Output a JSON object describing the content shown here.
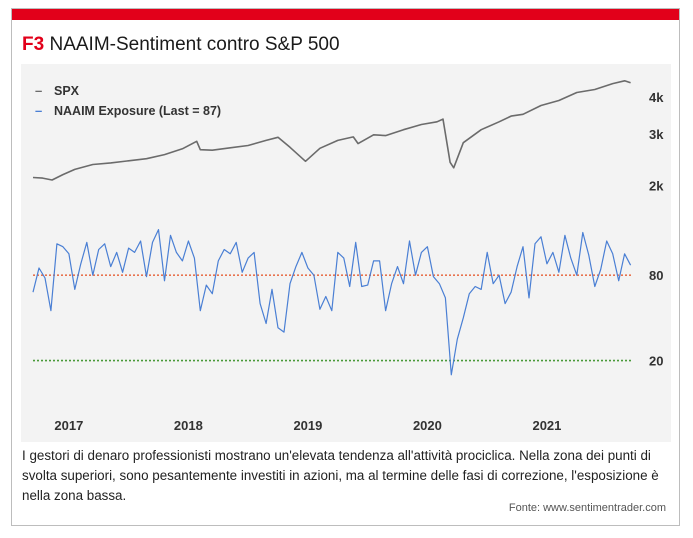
{
  "header": {
    "tag": "F3",
    "title": "NAAIM-Sentiment contro S&P 500"
  },
  "caption": "I gestori di denaro professionisti mostrano un'elevata tendenza all'attività prociclica. Nella zona dei punti di svolta superiori, sono pesantemente investiti in azioni, ma al termine delle fasi di correzione, l'esposizione è nella zona bassa.",
  "source": "Fonte: www.sentimentrader.com",
  "colors": {
    "accent": "#e2001a",
    "spx": "#6b6b6b",
    "naaim": "#4a7fd4",
    "ref_high": "#e8734f",
    "ref_low": "#4a9a3a",
    "plot_bg": "#f3f3f3"
  },
  "chart_data": {
    "type": "line",
    "legend": {
      "position": "top-left",
      "entries": [
        {
          "marker": "–",
          "label": "SPX"
        },
        {
          "marker": "–",
          "label": "NAAIM Exposure (Last = 87)"
        }
      ]
    },
    "x_ticks": [
      "2017",
      "2018",
      "2019",
      "2020",
      "2021"
    ],
    "x_range": [
      2016.7,
      2021.72
    ],
    "spx_axis": {
      "scale": "log",
      "ticks": [
        {
          "value": 4000,
          "label": "4k"
        },
        {
          "value": 3000,
          "label": "3k"
        },
        {
          "value": 2000,
          "label": "2k"
        }
      ],
      "range": [
        1800,
        4800
      ]
    },
    "naaim_axis": {
      "ticks": [
        {
          "value": 80,
          "label": "80"
        },
        {
          "value": 20,
          "label": "20"
        }
      ],
      "range": [
        0,
        130
      ]
    },
    "reference_lines": [
      {
        "value": 80,
        "style": "dotted"
      },
      {
        "value": 20,
        "style": "dotted"
      }
    ],
    "series": [
      {
        "name": "SPX",
        "x": [
          2016.7,
          2016.78,
          2016.86,
          2016.95,
          2017.05,
          2017.2,
          2017.35,
          2017.5,
          2017.65,
          2017.8,
          2017.95,
          2018.07,
          2018.1,
          2018.2,
          2018.35,
          2018.5,
          2018.65,
          2018.75,
          2018.85,
          2018.98,
          2019.1,
          2019.25,
          2019.38,
          2019.42,
          2019.55,
          2019.65,
          2019.8,
          2019.95,
          2020.08,
          2020.13,
          2020.19,
          2020.22,
          2020.3,
          2020.45,
          2020.6,
          2020.7,
          2020.8,
          2020.95,
          2021.1,
          2021.25,
          2021.4,
          2021.55,
          2021.65,
          2021.7
        ],
        "values": [
          2130,
          2120,
          2090,
          2180,
          2270,
          2360,
          2390,
          2430,
          2470,
          2550,
          2670,
          2830,
          2650,
          2640,
          2690,
          2740,
          2850,
          2920,
          2700,
          2420,
          2680,
          2850,
          2930,
          2780,
          2980,
          2960,
          3100,
          3230,
          3300,
          3370,
          2400,
          2300,
          2800,
          3100,
          3300,
          3450,
          3500,
          3750,
          3900,
          4150,
          4250,
          4450,
          4550,
          4480
        ]
      },
      {
        "name": "NAAIM Exposure (Last = 87)",
        "x": [
          2016.7,
          2016.75,
          2016.8,
          2016.85,
          2016.9,
          2016.95,
          2017.0,
          2017.05,
          2017.1,
          2017.15,
          2017.2,
          2017.25,
          2017.3,
          2017.35,
          2017.4,
          2017.45,
          2017.5,
          2017.55,
          2017.6,
          2017.65,
          2017.7,
          2017.75,
          2017.8,
          2017.85,
          2017.9,
          2017.95,
          2018.0,
          2018.05,
          2018.1,
          2018.15,
          2018.2,
          2018.25,
          2018.3,
          2018.35,
          2018.4,
          2018.45,
          2018.5,
          2018.55,
          2018.6,
          2018.65,
          2018.7,
          2018.75,
          2018.8,
          2018.85,
          2018.9,
          2018.95,
          2019.0,
          2019.05,
          2019.1,
          2019.15,
          2019.2,
          2019.25,
          2019.3,
          2019.35,
          2019.4,
          2019.45,
          2019.5,
          2019.55,
          2019.6,
          2019.65,
          2019.7,
          2019.75,
          2019.8,
          2019.85,
          2019.9,
          2019.95,
          2020.0,
          2020.05,
          2020.1,
          2020.15,
          2020.2,
          2020.25,
          2020.3,
          2020.35,
          2020.4,
          2020.45,
          2020.5,
          2020.55,
          2020.6,
          2020.65,
          2020.7,
          2020.75,
          2020.8,
          2020.85,
          2020.9,
          2020.95,
          2021.0,
          2021.05,
          2021.1,
          2021.15,
          2021.2,
          2021.25,
          2021.3,
          2021.35,
          2021.4,
          2021.45,
          2021.5,
          2021.55,
          2021.6,
          2021.65,
          2021.7
        ],
        "values": [
          68,
          85,
          78,
          55,
          102,
          100,
          95,
          70,
          88,
          103,
          80,
          98,
          102,
          86,
          96,
          82,
          99,
          96,
          104,
          79,
          103,
          112,
          76,
          108,
          96,
          90,
          104,
          92,
          55,
          73,
          67,
          90,
          98,
          95,
          103,
          82,
          92,
          96,
          60,
          46,
          70,
          43,
          40,
          74,
          86,
          96,
          85,
          80,
          56,
          65,
          55,
          96,
          92,
          72,
          103,
          72,
          73,
          90,
          90,
          55,
          74,
          86,
          74,
          104,
          80,
          96,
          100,
          79,
          74,
          64,
          10,
          35,
          50,
          67,
          72,
          70,
          96,
          74,
          80,
          60,
          68,
          86,
          100,
          64,
          102,
          107,
          88,
          96,
          82,
          108,
          92,
          80,
          110,
          94,
          72,
          84,
          104,
          95,
          76,
          95,
          87
        ]
      }
    ]
  }
}
